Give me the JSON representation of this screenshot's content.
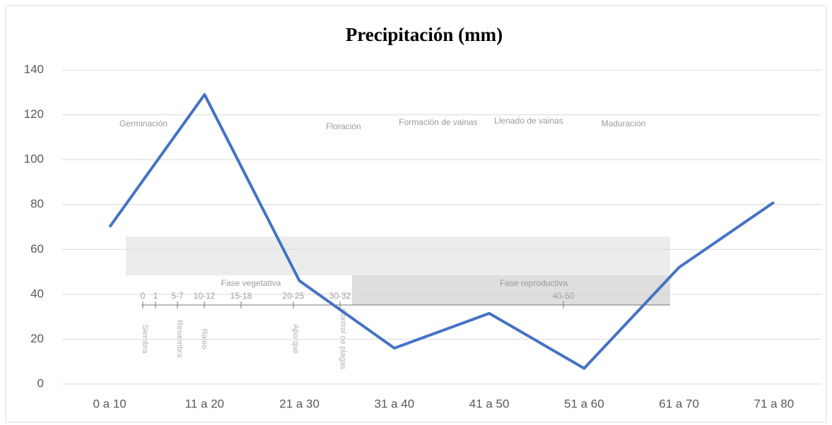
{
  "chart_data": {
    "type": "line",
    "title": "Precipitación (mm)",
    "categories": [
      "0 a 10",
      "11 a 20",
      "21 a 30",
      "31 a 40",
      "41 a 50",
      "51 a 60",
      "61 a 70",
      "71 a 80"
    ],
    "values": [
      70,
      129,
      46,
      16,
      31.5,
      7,
      52,
      81
    ],
    "color": "#4472c4",
    "ylim": [
      0,
      140
    ],
    "yticks": [
      0,
      20,
      40,
      60,
      80,
      100,
      120,
      140
    ],
    "grid": true,
    "stage_labels": [
      "Germinación",
      "Floración",
      "Formación de vainas",
      "Llenado de vainas",
      "Maduración"
    ],
    "phase_labels": [
      "Fase vegetativa",
      "Fase reproductiva"
    ],
    "day_labels": [
      "0",
      "1",
      "5-7",
      "10-12",
      "15-18",
      "20-25",
      "30-32",
      "40-50"
    ],
    "activity_labels": [
      "Siembra",
      "Resiembra",
      "Raleo",
      "Aporque",
      "Control de plagas"
    ]
  }
}
